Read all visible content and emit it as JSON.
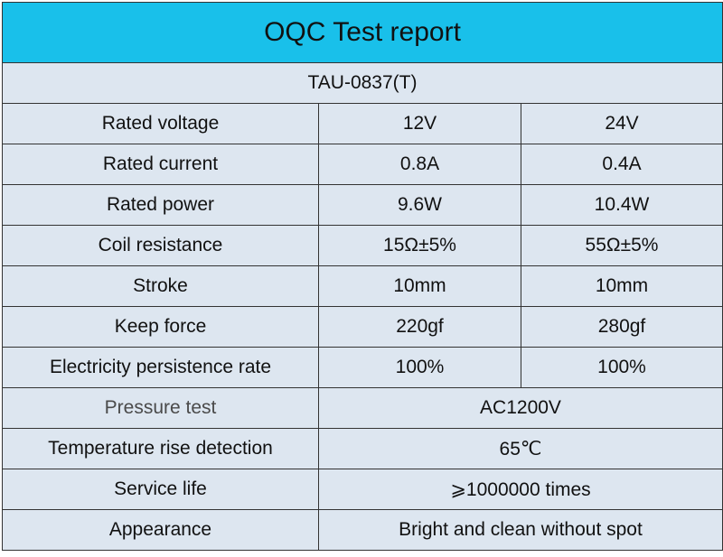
{
  "title": "OQC Test report",
  "model": "TAU-0837(T)",
  "colors": {
    "header_bg": "#19c0ea",
    "cell_bg": "#dde6f0",
    "border": "#333333"
  },
  "rows_split": [
    {
      "label": "Rated voltage",
      "v1": "12V",
      "v2": "24V"
    },
    {
      "label": "Rated current",
      "v1": "0.8A",
      "v2": "0.4A"
    },
    {
      "label": "Rated power",
      "v1": "9.6W",
      "v2": "10.4W"
    },
    {
      "label": "Coil resistance",
      "v1": "15Ω±5%",
      "v2": "55Ω±5%"
    },
    {
      "label": "Stroke",
      "v1": "10mm",
      "v2": "10mm"
    },
    {
      "label": "Keep force",
      "v1": "220gf",
      "v2": "280gf"
    },
    {
      "label": "Electricity persistence rate",
      "v1": "100%",
      "v2": "100%"
    }
  ],
  "rows_merged": [
    {
      "label": "Pressure test",
      "value": "AC1200V"
    },
    {
      "label": "Temperature rise detection",
      "value": "65℃"
    },
    {
      "label": "Service life",
      "value": "⩾1000000 times"
    },
    {
      "label": "Appearance",
      "value": "Bright and clean without spot"
    }
  ]
}
